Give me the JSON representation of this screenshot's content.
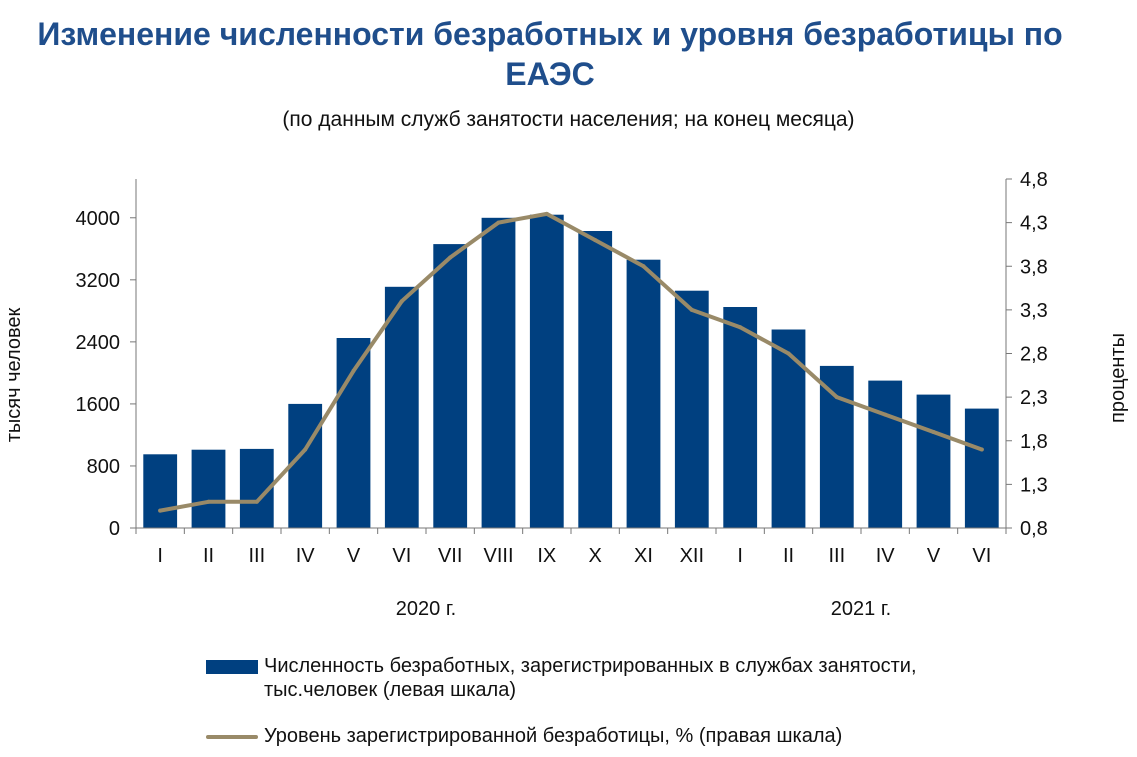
{
  "title": "Изменение численности безработных и уровня безработицы по ЕАЭС",
  "subtitle": "(по данным служб занятости населения; на конец месяца)",
  "colors": {
    "bars": "#004080",
    "line": "#998a68",
    "title": "#1f4e8c"
  },
  "legend": {
    "bars_label_line1": "Численность безработных, зарегистрированных в  службах занятости,",
    "bars_label_line2": "тыс.человек (левая шкала)",
    "line_label": "Уровень зарегистрированной безработицы, % (правая шкала)"
  },
  "chart_data": {
    "type": "bar",
    "categories": [
      "I",
      "II",
      "III",
      "IV",
      "V",
      "VI",
      "VII",
      "VIII",
      "IX",
      "X",
      "XI",
      "XII",
      "I",
      "II",
      "III",
      "IV",
      "V",
      "VI"
    ],
    "year_labels": [
      {
        "label": "2020 г.",
        "start_index": 0,
        "end_index": 11
      },
      {
        "label": "2021 г.",
        "start_index": 12,
        "end_index": 17
      }
    ],
    "series": [
      {
        "axis": "left",
        "type": "bar",
        "values": [
          950,
          1010,
          1020,
          1600,
          2450,
          3110,
          3660,
          4000,
          4040,
          3830,
          3460,
          3060,
          2850,
          2560,
          2090,
          1900,
          1720,
          1540
        ]
      },
      {
        "axis": "right",
        "type": "line",
        "values": [
          1.0,
          1.1,
          1.1,
          1.7,
          2.6,
          3.4,
          3.9,
          4.3,
          4.4,
          4.1,
          3.8,
          3.3,
          3.1,
          2.8,
          2.3,
          2.1,
          1.9,
          1.7
        ]
      }
    ],
    "y_left": {
      "label": "тысяч человек",
      "ylim": [
        0,
        4500
      ],
      "ticks": [
        0,
        800,
        1600,
        2400,
        3200,
        4000
      ]
    },
    "y_right": {
      "label": "проценты",
      "ylim": [
        0.8,
        4.8
      ],
      "ticks": [
        "0,8",
        "1,3",
        "1,8",
        "2,3",
        "2,8",
        "3,3",
        "3,8",
        "4,3",
        "4,8"
      ]
    },
    "grid": false,
    "legend_position": "bottom"
  }
}
